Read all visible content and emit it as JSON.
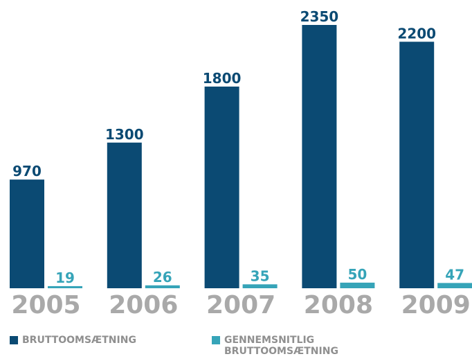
{
  "chart_data": {
    "type": "bar",
    "categories": [
      "2005",
      "2006",
      "2007",
      "2008",
      "2009"
    ],
    "series": [
      {
        "name": "BRUTTOOMSÆTNING",
        "color": "#0b4a73",
        "values": [
          970,
          1300,
          1800,
          2350,
          2200
        ]
      },
      {
        "name": "GENNEMSNITLIG BRUTTOOMSÆTNING",
        "color": "#36a4b8",
        "values": [
          19,
          26,
          35,
          50,
          47
        ]
      }
    ],
    "legend": "bottom-left"
  }
}
